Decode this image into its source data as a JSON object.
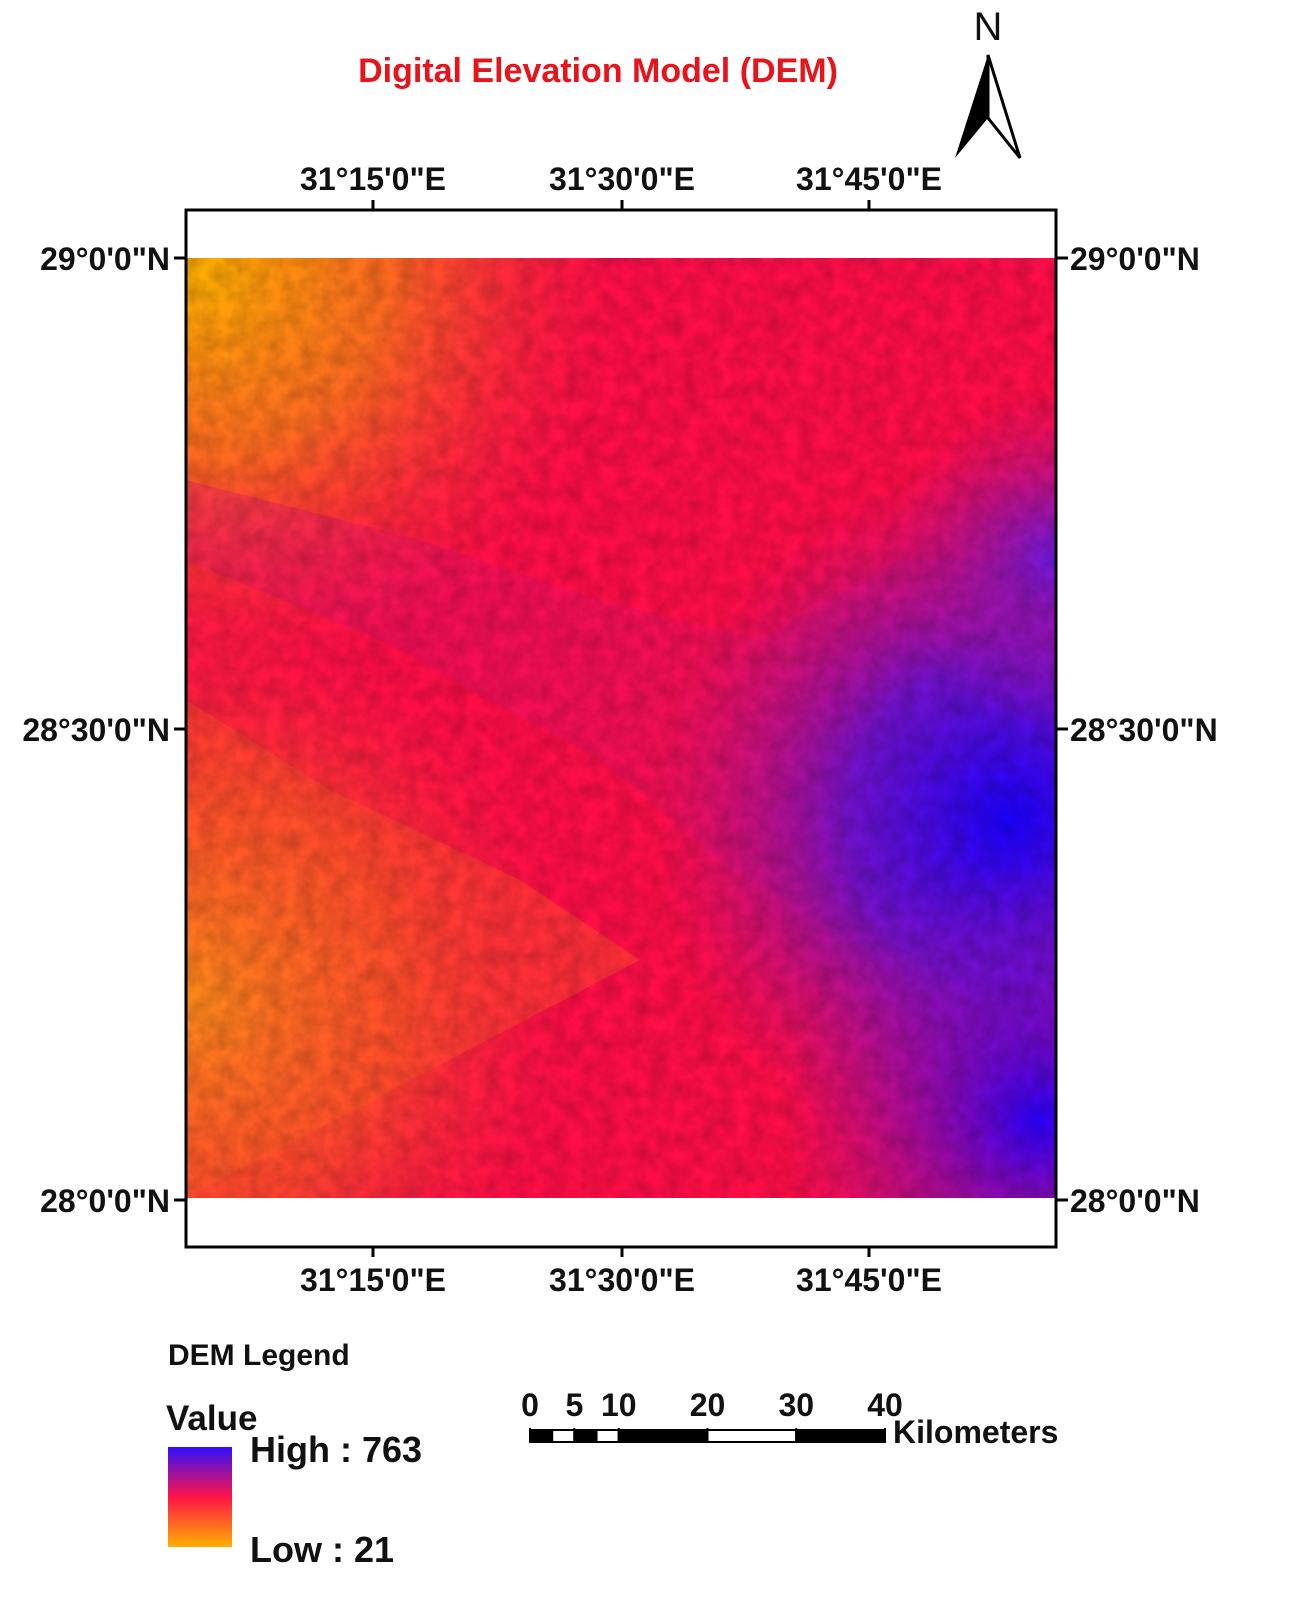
{
  "title": "Digital Elevation Model (DEM)",
  "north_arrow": {
    "label": "N"
  },
  "map": {
    "top_ticks": [
      "31°15'0\"E",
      "31°30'0\"E",
      "31°45'0\"E"
    ],
    "bottom_ticks": [
      "31°15'0\"E",
      "31°30'0\"E",
      "31°45'0\"E"
    ],
    "left_ticks": [
      "29°0'0\"N",
      "28°30'0\"N",
      "28°0'0\"N"
    ],
    "right_ticks": [
      "29°0'0\"N",
      "28°30'0\"N",
      "28°0'0\"N"
    ]
  },
  "legend": {
    "title": "DEM Legend",
    "field": "Value",
    "high": "High : 763",
    "low": "Low : 21"
  },
  "scale_bar": {
    "ticks": [
      0,
      5,
      10,
      20,
      30,
      40
    ],
    "unit": "Kilometers"
  }
}
